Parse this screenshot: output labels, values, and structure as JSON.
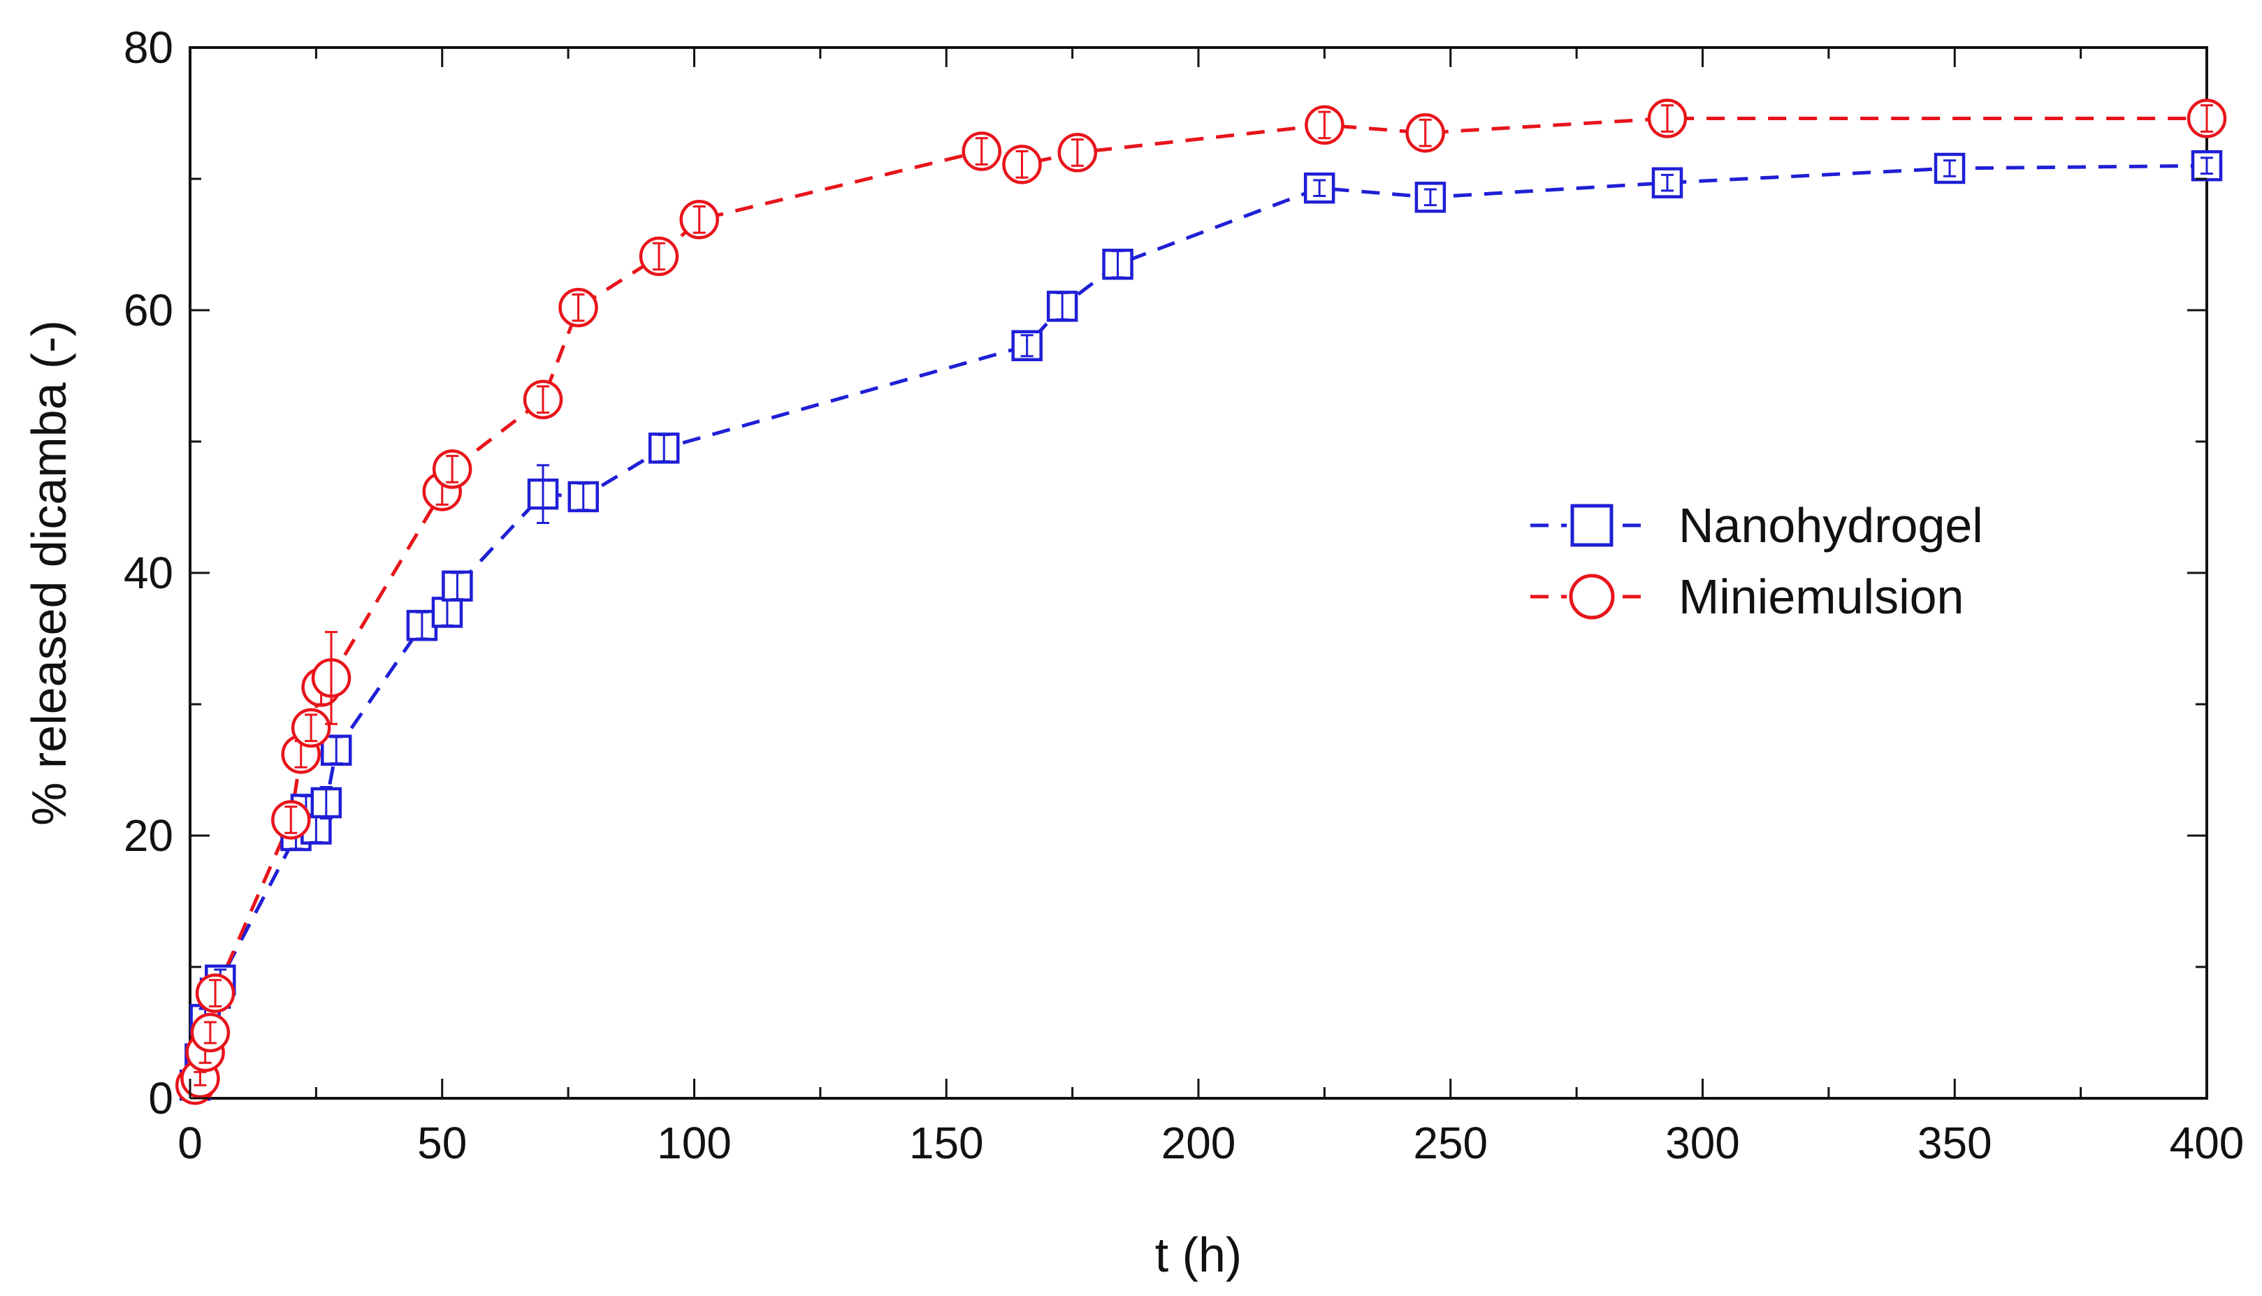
{
  "chart_data": {
    "type": "scatter",
    "title": "",
    "xlabel": "t (h)",
    "ylabel": "% released dicamba (-)",
    "xlim": [
      0,
      400
    ],
    "ylim": [
      0,
      80
    ],
    "xticks": [
      0,
      50,
      100,
      150,
      200,
      250,
      300,
      350,
      400
    ],
    "yticks": [
      0,
      20,
      40,
      60,
      80
    ],
    "xtick_labels": [
      "0",
      "50",
      "100",
      "150",
      "200",
      "250",
      "300",
      "350",
      "400"
    ],
    "ytick_labels": [
      "0",
      "20",
      "40",
      "60",
      "80"
    ],
    "grid": false,
    "legend_position": "center-right",
    "series": [
      {
        "name": "Nanohydrogel",
        "marker": "square",
        "line": "dashed",
        "color": "#1f1fd6",
        "x": [
          1,
          2,
          3,
          5,
          6,
          21,
          23,
          25,
          27,
          29,
          46,
          51,
          53,
          70,
          78,
          94,
          166,
          173,
          184,
          224,
          246,
          293,
          349,
          400
        ],
        "y": [
          1,
          3,
          6,
          8,
          9,
          20,
          22,
          20.5,
          22.5,
          26.5,
          36,
          37,
          39,
          46,
          45.8,
          49.5,
          57.3,
          60.3,
          63.5,
          69.3,
          68.6,
          69.7,
          70.8,
          71
        ],
        "yerr": [
          0.5,
          0.5,
          0.8,
          0.8,
          0.8,
          1,
          1,
          1,
          1.2,
          1,
          1,
          1,
          1,
          2.2,
          1,
          1,
          0.8,
          1,
          1,
          0.6,
          0.6,
          0.6,
          0.6,
          0.6
        ]
      },
      {
        "name": "Miniemulsion",
        "marker": "circle",
        "line": "dashed",
        "color": "#e8141b",
        "x": [
          1,
          2,
          3,
          4,
          5,
          20,
          22,
          24,
          26,
          28,
          50,
          52,
          70,
          77,
          93,
          101,
          157,
          165,
          176,
          225,
          245,
          293,
          400
        ],
        "y": [
          1,
          1.5,
          3.5,
          5,
          8,
          21.2,
          26.2,
          28.2,
          31.3,
          32,
          46.2,
          47.9,
          53.2,
          60.2,
          64.1,
          66.9,
          72.1,
          71.1,
          72,
          74.1,
          73.5,
          74.6,
          74.6
        ],
        "yerr": [
          0.5,
          0.5,
          0.8,
          0.8,
          1,
          1,
          1,
          1,
          1.3,
          3.5,
          1,
          1,
          1,
          1,
          1,
          1,
          1,
          1,
          1,
          1,
          1,
          1,
          1
        ]
      }
    ]
  }
}
